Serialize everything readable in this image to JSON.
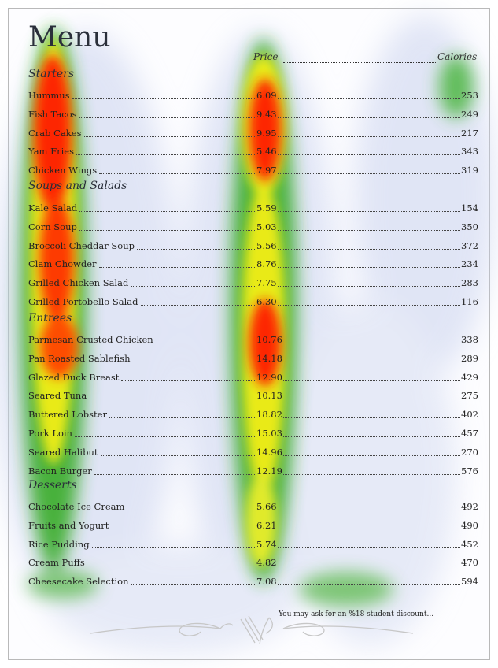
{
  "menu": {
    "title": "Menu",
    "price_header": "Price",
    "calories_header": "Calories",
    "sections": [
      {
        "name": "Starters",
        "items": [
          {
            "name": "Hummus",
            "price": "6.09",
            "calories": "253"
          },
          {
            "name": "Fish Tacos",
            "price": "9.43",
            "calories": "249"
          },
          {
            "name": "Crab Cakes",
            "price": "9.95",
            "calories": "217"
          },
          {
            "name": "Yam Fries",
            "price": "5.46",
            "calories": "343"
          },
          {
            "name": "Chicken Wings",
            "price": "7.97",
            "calories": "319"
          }
        ]
      },
      {
        "name": "Soups and Salads",
        "items": [
          {
            "name": "Kale Salad",
            "price": "5.59",
            "calories": "154"
          },
          {
            "name": "Corn Soup",
            "price": "5.03",
            "calories": "350"
          },
          {
            "name": "Broccoli Cheddar Soup",
            "price": "5.56",
            "calories": "372"
          },
          {
            "name": "Clam Chowder",
            "price": "8.76",
            "calories": "234"
          },
          {
            "name": "Grilled Chicken Salad",
            "price": "7.75",
            "calories": "283"
          },
          {
            "name": "Grilled Portobello Salad",
            "price": "6.30",
            "calories": "116"
          }
        ]
      },
      {
        "name": "Entrees",
        "items": [
          {
            "name": "Parmesan Crusted Chicken",
            "price": "10.76",
            "calories": "338"
          },
          {
            "name": "Pan Roasted Sablefish",
            "price": "14.18",
            "calories": "289"
          },
          {
            "name": "Glazed Duck Breast",
            "price": "12.90",
            "calories": "429"
          },
          {
            "name": "Seared Tuna",
            "price": "10.13",
            "calories": "275"
          },
          {
            "name": "Buttered Lobster",
            "price": "18.82",
            "calories": "402"
          },
          {
            "name": "Pork Loin",
            "price": "15.03",
            "calories": "457"
          },
          {
            "name": "Seared Halibut",
            "price": "14.96",
            "calories": "270"
          },
          {
            "name": "Bacon Burger",
            "price": "12.19",
            "calories": "576"
          }
        ]
      },
      {
        "name": "Desserts",
        "items": [
          {
            "name": "Chocolate Ice Cream",
            "price": "5.66",
            "calories": "492"
          },
          {
            "name": "Fruits and Yogurt",
            "price": "6.21",
            "calories": "490"
          },
          {
            "name": "Rice Pudding",
            "price": "5.74",
            "calories": "452"
          },
          {
            "name": "Cream Puffs",
            "price": "4.82",
            "calories": "470"
          },
          {
            "name": "Cheesecake Selection",
            "price": "7.08",
            "calories": "594"
          }
        ]
      }
    ],
    "discount_note": "You may ask for an %18 student discount..."
  },
  "heatmap": {
    "colors": {
      "hot": "#ff1a00",
      "warm": "#ffff00",
      "cool": "#22aa00",
      "haze": "#c9d2ee"
    }
  }
}
